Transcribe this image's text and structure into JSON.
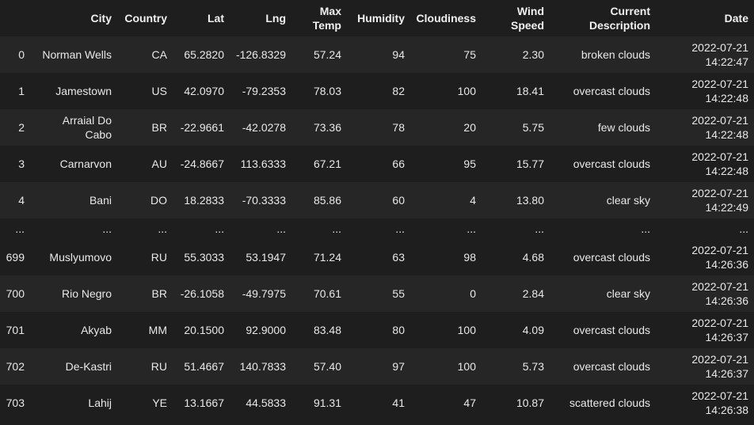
{
  "table": {
    "columns": [
      "",
      "City",
      "Country",
      "Lat",
      "Lng",
      "Max Temp",
      "Humidity",
      "Cloudiness",
      "Wind Speed",
      "Current Description",
      "Date"
    ],
    "rows": [
      [
        "0",
        "Norman Wells",
        "CA",
        "65.2820",
        "-126.8329",
        "57.24",
        "94",
        "75",
        "2.30",
        "broken clouds",
        "2022-07-21 14:22:47"
      ],
      [
        "1",
        "Jamestown",
        "US",
        "42.0970",
        "-79.2353",
        "78.03",
        "82",
        "100",
        "18.41",
        "overcast clouds",
        "2022-07-21 14:22:48"
      ],
      [
        "2",
        "Arraial Do Cabo",
        "BR",
        "-22.9661",
        "-42.0278",
        "73.36",
        "78",
        "20",
        "5.75",
        "few clouds",
        "2022-07-21 14:22:48"
      ],
      [
        "3",
        "Carnarvon",
        "AU",
        "-24.8667",
        "113.6333",
        "67.21",
        "66",
        "95",
        "15.77",
        "overcast clouds",
        "2022-07-21 14:22:48"
      ],
      [
        "4",
        "Bani",
        "DO",
        "18.2833",
        "-70.3333",
        "85.86",
        "60",
        "4",
        "13.80",
        "clear sky",
        "2022-07-21 14:22:49"
      ],
      [
        "...",
        "...",
        "...",
        "...",
        "...",
        "...",
        "...",
        "...",
        "...",
        "...",
        "..."
      ],
      [
        "699",
        "Muslyumovo",
        "RU",
        "55.3033",
        "53.1947",
        "71.24",
        "63",
        "98",
        "4.68",
        "overcast clouds",
        "2022-07-21 14:26:36"
      ],
      [
        "700",
        "Rio Negro",
        "BR",
        "-26.1058",
        "-49.7975",
        "70.61",
        "55",
        "0",
        "2.84",
        "clear sky",
        "2022-07-21 14:26:36"
      ],
      [
        "701",
        "Akyab",
        "MM",
        "20.1500",
        "92.9000",
        "83.48",
        "80",
        "100",
        "4.09",
        "overcast clouds",
        "2022-07-21 14:26:37"
      ],
      [
        "702",
        "De-Kastri",
        "RU",
        "51.4667",
        "140.7833",
        "57.40",
        "97",
        "100",
        "5.73",
        "overcast clouds",
        "2022-07-21 14:26:37"
      ],
      [
        "703",
        "Lahij",
        "YE",
        "13.1667",
        "44.5833",
        "91.31",
        "41",
        "47",
        "10.87",
        "scattered clouds",
        "2022-07-21 14:26:38"
      ]
    ]
  }
}
